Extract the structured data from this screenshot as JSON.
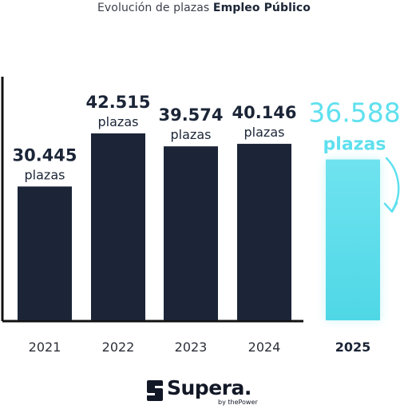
{
  "title": {
    "prefix": "Evolución de plazas",
    "bold": "Empleo Público"
  },
  "chart_data": {
    "type": "bar",
    "categories": [
      "2021",
      "2022",
      "2023",
      "2024",
      "2025"
    ],
    "values": [
      30445,
      42515,
      39574,
      40146,
      36588
    ],
    "value_labels": [
      "30.445",
      "42.515",
      "39.574",
      "40.146",
      "36.588"
    ],
    "unit_label": "plazas",
    "title": "Evolución de plazas Empleo Público",
    "xlabel": "",
    "ylabel": "",
    "grid": false,
    "legend": "none",
    "highlight_category": "2025",
    "colors": {
      "bar": "#1b2537",
      "highlight_bar_top": "#6fe3ef",
      "highlight_bar_bottom": "#4fd7e6",
      "highlight_text": "#5fe0ee",
      "label_text": "#1b2537",
      "tick_text": "#2b2f38",
      "axis": "#111111"
    },
    "annotation": "curved arrow pointing down to the 2025 bar"
  },
  "logo": {
    "brand": "Supera.",
    "sub": "by thePower",
    "icon": "supera-s-icon"
  }
}
